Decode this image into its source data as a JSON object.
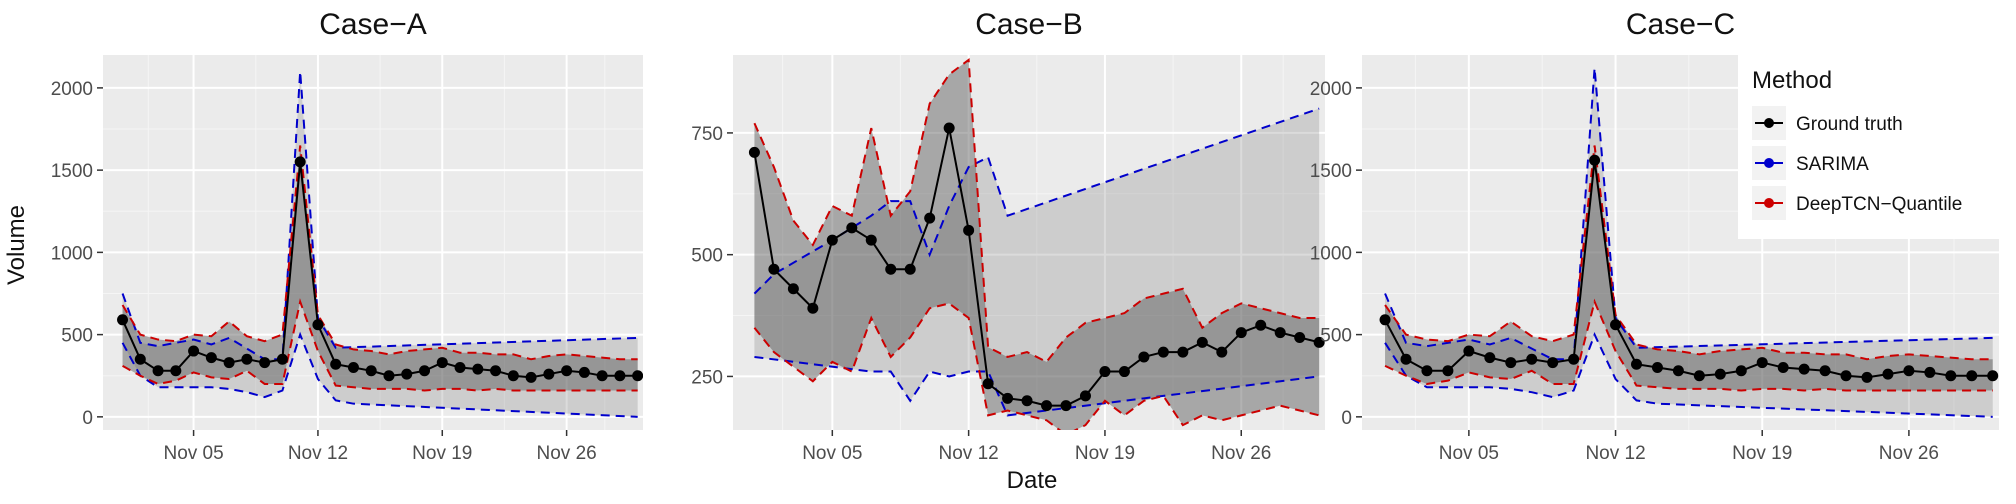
{
  "chart_data": {
    "type": "line",
    "xlabel": "Date",
    "ylabel": "Volume",
    "x_tick_labels": [
      "Nov 05",
      "Nov 12",
      "Nov 19",
      "Nov 26"
    ],
    "x_tick_days": [
      5,
      12,
      19,
      26
    ],
    "legend": {
      "title": "Method",
      "position": "top-right",
      "entries": [
        {
          "label": "Ground truth",
          "color": "#000000"
        },
        {
          "label": "SARIMA",
          "color": "#0000cc"
        },
        {
          "label": "DeepTCN−Quantile",
          "color": "#cc0000"
        }
      ]
    },
    "grid": true,
    "panels": [
      {
        "title": "Case−A",
        "ylim": [
          -80,
          2200
        ],
        "xlim": [
          29.9,
          60.3
        ],
        "y_ticks": [
          0,
          500,
          1000,
          1500,
          2000
        ],
        "ground_truth": {
          "x": [
            31,
            32,
            33,
            34,
            35,
            36,
            37,
            38,
            39,
            40,
            41,
            42,
            43,
            44,
            45,
            46,
            47,
            48,
            49,
            50,
            51,
            52,
            53,
            54,
            55,
            56,
            57,
            58,
            59,
            60
          ],
          "y": [
            590,
            350,
            280,
            280,
            400,
            360,
            330,
            350,
            330,
            350,
            1550,
            560,
            320,
            300,
            280,
            250,
            260,
            280,
            330,
            300,
            290,
            280,
            250,
            240,
            260,
            280,
            270,
            250,
            250,
            250
          ]
        },
        "deeptcn_band": {
          "upper": [
            680,
            500,
            470,
            460,
            500,
            490,
            580,
            490,
            460,
            500,
            1650,
            620,
            440,
            410,
            400,
            380,
            400,
            410,
            420,
            390,
            390,
            380,
            380,
            350,
            370,
            380,
            370,
            360,
            350,
            350
          ],
          "lower": [
            310,
            250,
            200,
            220,
            270,
            240,
            230,
            280,
            200,
            200,
            700,
            400,
            190,
            180,
            170,
            170,
            170,
            160,
            170,
            170,
            160,
            170,
            160,
            160,
            160,
            160,
            160,
            160,
            160,
            160
          ]
        },
        "sarima_band": {
          "x_upper": [
            31,
            32,
            33,
            35,
            36,
            37,
            39,
            40,
            41,
            42,
            43,
            60
          ],
          "upper": [
            750,
            450,
            430,
            470,
            440,
            480,
            350,
            350,
            2100,
            600,
            420,
            480
          ],
          "x_lower": [
            31,
            32,
            33,
            36,
            37,
            38,
            39,
            40,
            41,
            42,
            43,
            44,
            60
          ],
          "lower": [
            450,
            250,
            180,
            180,
            170,
            150,
            120,
            160,
            500,
            230,
            100,
            80,
            0
          ]
        }
      },
      {
        "title": "Case−B",
        "ylim": [
          140,
          910
        ],
        "xlim": [
          29.9,
          60.3
        ],
        "y_ticks": [
          250,
          500,
          750
        ],
        "ground_truth": {
          "x": [
            31,
            32,
            33,
            34,
            35,
            36,
            37,
            38,
            39,
            40,
            41,
            42,
            43,
            44,
            45,
            46,
            47,
            48,
            49,
            50,
            51,
            52,
            53,
            54,
            55,
            56,
            57,
            58,
            59,
            60
          ],
          "y": [
            710,
            470,
            430,
            390,
            530,
            555,
            530,
            470,
            470,
            575,
            760,
            550,
            235,
            205,
            200,
            190,
            190,
            210,
            260,
            260,
            290,
            300,
            300,
            320,
            300,
            340,
            355,
            340,
            330,
            320
          ]
        },
        "deeptcn_band": {
          "upper": [
            770,
            680,
            570,
            520,
            600,
            580,
            760,
            580,
            630,
            810,
            870,
            900,
            310,
            290,
            300,
            280,
            330,
            360,
            370,
            380,
            410,
            420,
            430,
            350,
            380,
            400,
            390,
            380,
            370,
            370
          ],
          "lower": [
            350,
            300,
            270,
            240,
            280,
            260,
            370,
            290,
            330,
            390,
            400,
            370,
            170,
            180,
            170,
            160,
            130,
            150,
            200,
            170,
            200,
            210,
            150,
            170,
            160,
            170,
            180,
            190,
            180,
            170
          ]
        },
        "sarima_band": {
          "x_upper": [
            31,
            32,
            35,
            37,
            38,
            39,
            40,
            41,
            42,
            43,
            44,
            60
          ],
          "upper": [
            420,
            460,
            530,
            580,
            610,
            610,
            500,
            600,
            680,
            700,
            580,
            800
          ],
          "x_lower": [
            31,
            37,
            38,
            39,
            40,
            41,
            42,
            43,
            44,
            60
          ],
          "lower": [
            290,
            260,
            260,
            200,
            260,
            250,
            260,
            260,
            170,
            250
          ]
        }
      },
      {
        "title": "Case−C",
        "ylim": [
          -80,
          2200
        ],
        "xlim": [
          29.9,
          60.3
        ],
        "y_ticks": [
          0,
          500,
          1000,
          1500,
          2000
        ],
        "ground_truth": {
          "x": [
            31,
            32,
            33,
            34,
            35,
            36,
            37,
            38,
            39,
            40,
            41,
            42,
            43,
            44,
            45,
            46,
            47,
            48,
            49,
            50,
            51,
            52,
            53,
            54,
            55,
            56,
            57,
            58,
            59,
            60
          ],
          "y": [
            590,
            350,
            280,
            280,
            400,
            360,
            330,
            350,
            330,
            350,
            1560,
            560,
            320,
            300,
            280,
            250,
            260,
            280,
            330,
            300,
            290,
            280,
            250,
            240,
            260,
            280,
            270,
            250,
            250,
            250
          ]
        },
        "deeptcn_band": {
          "upper": [
            680,
            500,
            470,
            460,
            500,
            490,
            580,
            490,
            460,
            500,
            1650,
            620,
            440,
            410,
            400,
            380,
            400,
            410,
            420,
            390,
            390,
            380,
            380,
            350,
            370,
            380,
            370,
            360,
            350,
            350
          ],
          "lower": [
            310,
            250,
            200,
            220,
            270,
            240,
            230,
            280,
            200,
            200,
            700,
            400,
            190,
            180,
            170,
            170,
            170,
            160,
            170,
            170,
            160,
            170,
            160,
            160,
            160,
            160,
            160,
            160,
            160,
            160
          ]
        },
        "sarima_band": {
          "x_upper": [
            31,
            32,
            33,
            35,
            36,
            37,
            39,
            40,
            41,
            42,
            43,
            60
          ],
          "upper": [
            750,
            450,
            430,
            470,
            440,
            480,
            350,
            350,
            2120,
            600,
            420,
            480
          ],
          "x_lower": [
            31,
            32,
            33,
            36,
            37,
            38,
            39,
            40,
            41,
            42,
            43,
            44,
            60
          ],
          "lower": [
            450,
            250,
            180,
            180,
            170,
            150,
            120,
            160,
            500,
            230,
            100,
            80,
            0
          ]
        }
      }
    ]
  }
}
